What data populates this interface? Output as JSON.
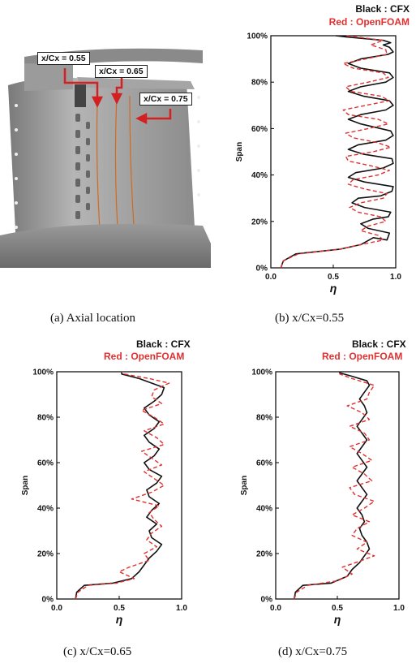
{
  "panel_a": {
    "caption": "(a)  Axial  location",
    "callouts": [
      "x/Cx = 0.55",
      "x/Cx = 0.65",
      "x/Cx = 0.75"
    ]
  },
  "colors": {
    "cfx": "#111111",
    "openfoam": "#e03030",
    "blade": "#9a9a9a",
    "hub": "#777777"
  },
  "chart_data": [
    {
      "type": "line",
      "caption": "(b)  x/Cx=0.55",
      "legend": [
        "Black : CFX",
        "Red : OpenFOAM"
      ],
      "xlabel": "η",
      "ylabel": "Span",
      "xlim": [
        0,
        1
      ],
      "ylim": [
        0,
        100
      ],
      "xticks": [
        "0.0",
        "0.5",
        "1.0"
      ],
      "yticks": [
        "0%",
        "20%",
        "40%",
        "60%",
        "80%",
        "100%"
      ],
      "series": [
        {
          "name": "CFX",
          "color": "#111111",
          "dash": false,
          "points": [
            [
              0.08,
              0
            ],
            [
              0.1,
              3
            ],
            [
              0.2,
              6
            ],
            [
              0.55,
              8
            ],
            [
              0.72,
              10
            ],
            [
              0.82,
              13
            ],
            [
              0.93,
              12
            ],
            [
              0.95,
              15
            ],
            [
              0.78,
              17
            ],
            [
              0.72,
              19
            ],
            [
              0.82,
              21
            ],
            [
              0.94,
              22
            ],
            [
              0.96,
              24
            ],
            [
              0.75,
              26
            ],
            [
              0.65,
              28
            ],
            [
              0.7,
              30
            ],
            [
              0.88,
              31
            ],
            [
              0.97,
              33
            ],
            [
              0.98,
              35
            ],
            [
              0.75,
              37
            ],
            [
              0.62,
              39
            ],
            [
              0.68,
              41
            ],
            [
              0.9,
              43
            ],
            [
              0.98,
              45
            ],
            [
              0.97,
              47
            ],
            [
              0.74,
              49
            ],
            [
              0.62,
              51
            ],
            [
              0.7,
              53
            ],
            [
              0.92,
              55
            ],
            [
              0.98,
              57
            ],
            [
              0.96,
              59
            ],
            [
              0.72,
              62
            ],
            [
              0.62,
              64
            ],
            [
              0.72,
              66
            ],
            [
              0.92,
              68
            ],
            [
              0.98,
              70
            ],
            [
              0.95,
              72
            ],
            [
              0.74,
              74
            ],
            [
              0.62,
              76
            ],
            [
              0.72,
              78
            ],
            [
              0.92,
              80
            ],
            [
              0.98,
              82
            ],
            [
              0.95,
              84
            ],
            [
              0.72,
              86
            ],
            [
              0.62,
              88
            ],
            [
              0.72,
              90
            ],
            [
              0.94,
              92
            ],
            [
              0.98,
              93
            ],
            [
              0.95,
              95
            ],
            [
              0.9,
              96
            ],
            [
              0.96,
              97
            ],
            [
              0.9,
              98
            ],
            [
              0.6,
              99.5
            ],
            [
              0.52,
              100
            ]
          ]
        },
        {
          "name": "OpenFOAM",
          "color": "#e03030",
          "dash": true,
          "points": [
            [
              0.08,
              0
            ],
            [
              0.1,
              3
            ],
            [
              0.22,
              6
            ],
            [
              0.55,
              8
            ],
            [
              0.72,
              10
            ],
            [
              0.9,
              12
            ],
            [
              0.86,
              14
            ],
            [
              0.72,
              16
            ],
            [
              0.78,
              18
            ],
            [
              0.92,
              20
            ],
            [
              0.88,
              22
            ],
            [
              0.7,
              24
            ],
            [
              0.63,
              26
            ],
            [
              0.72,
              28
            ],
            [
              0.9,
              30
            ],
            [
              0.93,
              32
            ],
            [
              0.75,
              34
            ],
            [
              0.62,
              36
            ],
            [
              0.66,
              38
            ],
            [
              0.86,
              40
            ],
            [
              0.95,
              42
            ],
            [
              0.8,
              44
            ],
            [
              0.62,
              46
            ],
            [
              0.6,
              48
            ],
            [
              0.82,
              50
            ],
            [
              0.96,
              52
            ],
            [
              0.85,
              54
            ],
            [
              0.66,
              56
            ],
            [
              0.6,
              58
            ],
            [
              0.78,
              60
            ],
            [
              0.94,
              62
            ],
            [
              0.86,
              64
            ],
            [
              0.62,
              66
            ],
            [
              0.58,
              68
            ],
            [
              0.76,
              70
            ],
            [
              0.95,
              72
            ],
            [
              0.88,
              74
            ],
            [
              0.64,
              76
            ],
            [
              0.6,
              78
            ],
            [
              0.78,
              80
            ],
            [
              0.94,
              82
            ],
            [
              0.9,
              84
            ],
            [
              0.66,
              86
            ],
            [
              0.58,
              88
            ],
            [
              0.76,
              90
            ],
            [
              0.93,
              92
            ],
            [
              0.92,
              94
            ],
            [
              0.8,
              96
            ],
            [
              0.9,
              98
            ],
            [
              0.6,
              100
            ]
          ]
        }
      ]
    },
    {
      "type": "line",
      "caption": "(c)  x/Cx=0.65",
      "legend": [
        "Black : CFX",
        "Red : OpenFOAM"
      ],
      "xlabel": "η",
      "ylabel": "Span",
      "xlim": [
        0,
        1
      ],
      "ylim": [
        0,
        100
      ],
      "xticks": [
        "0.0",
        "0.5",
        "1.0"
      ],
      "yticks": [
        "0%",
        "20%",
        "40%",
        "60%",
        "80%",
        "100%"
      ],
      "series": [
        {
          "name": "CFX",
          "color": "#111111",
          "dash": false,
          "points": [
            [
              0.15,
              0
            ],
            [
              0.16,
              3
            ],
            [
              0.22,
              6
            ],
            [
              0.45,
              7
            ],
            [
              0.6,
              9
            ],
            [
              0.66,
              12
            ],
            [
              0.7,
              15
            ],
            [
              0.74,
              18
            ],
            [
              0.8,
              21
            ],
            [
              0.84,
              24
            ],
            [
              0.76,
              27
            ],
            [
              0.74,
              30
            ],
            [
              0.8,
              33
            ],
            [
              0.72,
              36
            ],
            [
              0.76,
              39
            ],
            [
              0.82,
              42
            ],
            [
              0.74,
              45
            ],
            [
              0.72,
              48
            ],
            [
              0.8,
              51
            ],
            [
              0.84,
              54
            ],
            [
              0.74,
              57
            ],
            [
              0.7,
              60
            ],
            [
              0.78,
              63
            ],
            [
              0.82,
              66
            ],
            [
              0.74,
              69
            ],
            [
              0.7,
              72
            ],
            [
              0.78,
              75
            ],
            [
              0.82,
              78
            ],
            [
              0.74,
              81
            ],
            [
              0.7,
              84
            ],
            [
              0.78,
              87
            ],
            [
              0.84,
              90
            ],
            [
              0.86,
              93
            ],
            [
              0.76,
              95
            ],
            [
              0.66,
              97
            ],
            [
              0.52,
              99
            ],
            [
              0.52,
              100
            ]
          ]
        },
        {
          "name": "OpenFOAM",
          "color": "#e03030",
          "dash": true,
          "points": [
            [
              0.15,
              0
            ],
            [
              0.17,
              3
            ],
            [
              0.25,
              6
            ],
            [
              0.48,
              7
            ],
            [
              0.62,
              9
            ],
            [
              0.5,
              12
            ],
            [
              0.58,
              14
            ],
            [
              0.74,
              17
            ],
            [
              0.7,
              20
            ],
            [
              0.8,
              23
            ],
            [
              0.72,
              26
            ],
            [
              0.76,
              29
            ],
            [
              0.84,
              32
            ],
            [
              0.78,
              35
            ],
            [
              0.74,
              38
            ],
            [
              0.82,
              41
            ],
            [
              0.6,
              44
            ],
            [
              0.76,
              47
            ],
            [
              0.86,
              50
            ],
            [
              0.78,
              53
            ],
            [
              0.7,
              56
            ],
            [
              0.84,
              59
            ],
            [
              0.76,
              62
            ],
            [
              0.68,
              65
            ],
            [
              0.86,
              68
            ],
            [
              0.8,
              71
            ],
            [
              0.7,
              74
            ],
            [
              0.86,
              77
            ],
            [
              0.78,
              80
            ],
            [
              0.68,
              83
            ],
            [
              0.84,
              86
            ],
            [
              0.76,
              89
            ],
            [
              0.78,
              92
            ],
            [
              0.9,
              95
            ],
            [
              0.74,
              97
            ],
            [
              0.54,
              99
            ],
            [
              0.52,
              100
            ]
          ]
        }
      ]
    },
    {
      "type": "line",
      "caption": "(d)  x/Cx=0.75",
      "legend": [
        "Black : CFX",
        "Red : OpenFOAM"
      ],
      "xlabel": "η",
      "ylabel": "Span",
      "xlim": [
        0,
        1
      ],
      "ylim": [
        0,
        100
      ],
      "xticks": [
        "0.0",
        "0.5",
        "1.0"
      ],
      "yticks": [
        "0%",
        "20%",
        "40%",
        "60%",
        "80%",
        "100%"
      ],
      "series": [
        {
          "name": "CFX",
          "color": "#111111",
          "dash": false,
          "points": [
            [
              0.15,
              0
            ],
            [
              0.16,
              3
            ],
            [
              0.22,
              6
            ],
            [
              0.45,
              7
            ],
            [
              0.58,
              10
            ],
            [
              0.62,
              13
            ],
            [
              0.68,
              16
            ],
            [
              0.72,
              19
            ],
            [
              0.76,
              22
            ],
            [
              0.74,
              25
            ],
            [
              0.7,
              28
            ],
            [
              0.68,
              31
            ],
            [
              0.72,
              34
            ],
            [
              0.7,
              37
            ],
            [
              0.66,
              40
            ],
            [
              0.7,
              43
            ],
            [
              0.74,
              46
            ],
            [
              0.7,
              49
            ],
            [
              0.66,
              52
            ],
            [
              0.7,
              55
            ],
            [
              0.74,
              58
            ],
            [
              0.7,
              61
            ],
            [
              0.66,
              64
            ],
            [
              0.7,
              67
            ],
            [
              0.74,
              70
            ],
            [
              0.7,
              73
            ],
            [
              0.66,
              76
            ],
            [
              0.7,
              79
            ],
            [
              0.74,
              82
            ],
            [
              0.72,
              85
            ],
            [
              0.68,
              88
            ],
            [
              0.72,
              91
            ],
            [
              0.76,
              94
            ],
            [
              0.74,
              96
            ],
            [
              0.62,
              98
            ],
            [
              0.52,
              99.5
            ],
            [
              0.52,
              100
            ]
          ]
        },
        {
          "name": "OpenFOAM",
          "color": "#e03030",
          "dash": true,
          "points": [
            [
              0.15,
              0
            ],
            [
              0.17,
              3
            ],
            [
              0.26,
              6
            ],
            [
              0.5,
              8
            ],
            [
              0.62,
              11
            ],
            [
              0.54,
              14
            ],
            [
              0.7,
              17
            ],
            [
              0.8,
              19
            ],
            [
              0.66,
              22
            ],
            [
              0.74,
              25
            ],
            [
              0.62,
              28
            ],
            [
              0.66,
              31
            ],
            [
              0.76,
              34
            ],
            [
              0.62,
              37
            ],
            [
              0.72,
              40
            ],
            [
              0.8,
              43
            ],
            [
              0.64,
              46
            ],
            [
              0.6,
              49
            ],
            [
              0.78,
              52
            ],
            [
              0.72,
              55
            ],
            [
              0.62,
              58
            ],
            [
              0.78,
              61
            ],
            [
              0.7,
              64
            ],
            [
              0.6,
              67
            ],
            [
              0.76,
              70
            ],
            [
              0.72,
              73
            ],
            [
              0.6,
              76
            ],
            [
              0.76,
              79
            ],
            [
              0.7,
              82
            ],
            [
              0.58,
              85
            ],
            [
              0.74,
              88
            ],
            [
              0.76,
              91
            ],
            [
              0.8,
              94
            ],
            [
              0.62,
              97
            ],
            [
              0.52,
              99
            ],
            [
              0.52,
              100
            ]
          ]
        }
      ]
    }
  ]
}
